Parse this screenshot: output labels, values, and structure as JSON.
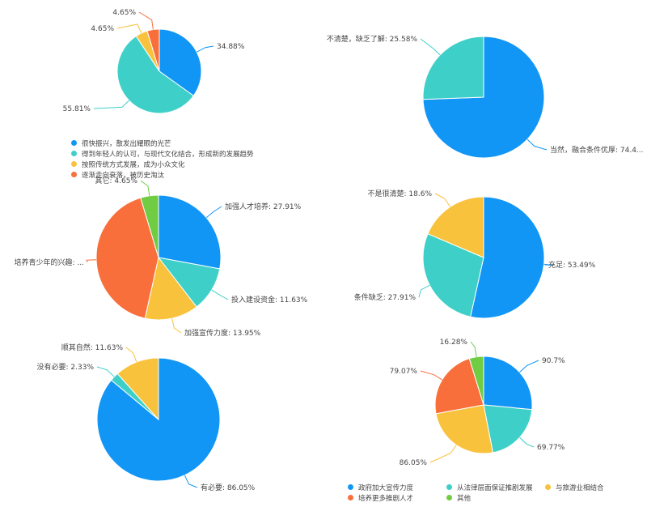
{
  "colors": [
    "#1296f6",
    "#3ed0c8",
    "#f9c23c",
    "#f86f3c",
    "#70cc42"
  ],
  "chart_data": [
    {
      "type": "pie",
      "labels": [
        "很快振兴，散发出耀眼的光芒",
        "得到年轻人的认可，与现代文化结合，形成新的发展趋势",
        "按照传统方式发展，成为小众文化",
        "逐渐走向衰落，被历史淘汰"
      ],
      "values": [
        34.88,
        55.81,
        4.65,
        4.65
      ],
      "data_labels": [
        "34.88%",
        "55.81%",
        "4.65%",
        "4.65%"
      ],
      "legend": "bottom"
    },
    {
      "type": "pie",
      "labels": [
        "当然，融合条件优厚",
        "不清楚，缺乏了解"
      ],
      "values": [
        74.42,
        25.58
      ],
      "data_labels": [
        "当然，融合条件优厚: 74.4...",
        "不清楚，缺乏了解: 25.58%"
      ]
    },
    {
      "type": "pie",
      "labels": [
        "加强人才培养",
        "投入建设资金",
        "加强宣传力度",
        "培养青少年的兴趣",
        "其它"
      ],
      "values": [
        27.91,
        11.63,
        13.95,
        41.86,
        4.65
      ],
      "data_labels": [
        "加强人才培养: 27.91%",
        "投入建设资金: 11.63%",
        "加强宣传力度: 13.95%",
        "培养青少年的兴趣: ...",
        "其它: 4.65%"
      ]
    },
    {
      "type": "pie",
      "labels": [
        "充足",
        "条件缺乏",
        "不是很清楚"
      ],
      "values": [
        53.49,
        27.91,
        18.6
      ],
      "data_labels": [
        "充足: 53.49%",
        "条件缺乏: 27.91%",
        "不是很清楚: 18.6%"
      ]
    },
    {
      "type": "pie",
      "labels": [
        "有必要",
        "没有必要",
        "顺其自然"
      ],
      "values": [
        86.05,
        2.33,
        11.63
      ],
      "data_labels": [
        "有必要: 86.05%",
        "没有必要: 2.33%",
        "顺其自然: 11.63%"
      ]
    },
    {
      "type": "pie",
      "labels": [
        "政府加大宣传力度",
        "从法律层面保证推剧发展",
        "与旅游业相结合",
        "培养更多推剧人才",
        "其他"
      ],
      "values": [
        90.7,
        69.77,
        86.05,
        79.07,
        16.28
      ],
      "data_labels": [
        "90.7%",
        "69.77%",
        "86.05%",
        "79.07%",
        "16.28%"
      ],
      "legend": "bottom"
    }
  ]
}
